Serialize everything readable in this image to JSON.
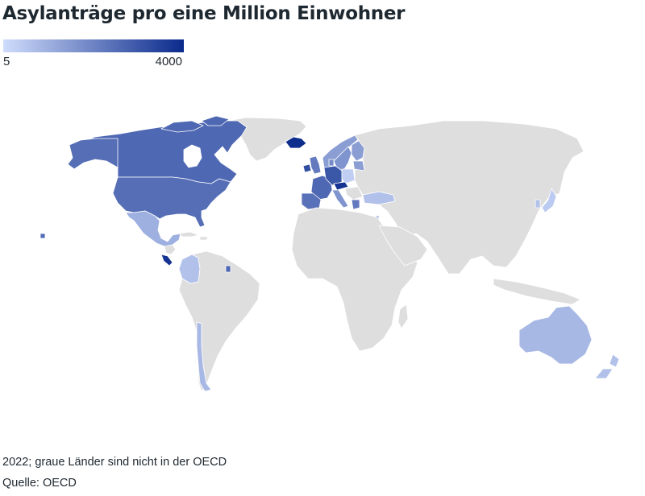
{
  "title": "Asylanträge pro eine Million Einwohner",
  "legend": {
    "min_label": "5",
    "max_label": "4000",
    "color_low": "#cfdcfb",
    "color_high": "#0a2a8c"
  },
  "note": "2022; graue Länder sind nicht in der OECD",
  "source": "Quelle: OECD",
  "colors": {
    "non_oecd": "#dedede",
    "border": "#ffffff"
  },
  "map_data": [
    {
      "country": "Canada",
      "level": 0.65
    },
    {
      "country": "United States",
      "level": 0.62
    },
    {
      "country": "Mexico",
      "level": 0.25
    },
    {
      "country": "Costa Rica",
      "level": 0.95
    },
    {
      "country": "Colombia",
      "level": 0.15
    },
    {
      "country": "Chile",
      "level": 0.2
    },
    {
      "country": "Iceland",
      "level": 0.98
    },
    {
      "country": "Ireland",
      "level": 0.8
    },
    {
      "country": "United Kingdom",
      "level": 0.55
    },
    {
      "country": "France",
      "level": 0.65
    },
    {
      "country": "Spain",
      "level": 0.6
    },
    {
      "country": "Portugal",
      "level": 0.45
    },
    {
      "country": "Belgium",
      "level": 0.75
    },
    {
      "country": "Netherlands",
      "level": 0.65
    },
    {
      "country": "Germany",
      "level": 0.75
    },
    {
      "country": "Switzerland",
      "level": 0.8
    },
    {
      "country": "Austria",
      "level": 0.95
    },
    {
      "country": "Italy",
      "level": 0.4
    },
    {
      "country": "Slovenia",
      "level": 0.7
    },
    {
      "country": "Poland",
      "level": 0.08
    },
    {
      "country": "Czechia",
      "level": 0.1
    },
    {
      "country": "Slovakia",
      "level": 0.08
    },
    {
      "country": "Hungary",
      "level": 0.05
    },
    {
      "country": "Denmark",
      "level": 0.45
    },
    {
      "country": "Norway",
      "level": 0.35
    },
    {
      "country": "Sweden",
      "level": 0.4
    },
    {
      "country": "Finland",
      "level": 0.35
    },
    {
      "country": "Estonia",
      "level": 0.35
    },
    {
      "country": "Latvia",
      "level": 0.3
    },
    {
      "country": "Lithuania",
      "level": 0.3
    },
    {
      "country": "Greece",
      "level": 0.55
    },
    {
      "country": "Turkey",
      "level": 0.15
    },
    {
      "country": "Israel",
      "level": 0.3
    },
    {
      "country": "Japan",
      "level": 0.1
    },
    {
      "country": "South Korea",
      "level": 0.15
    },
    {
      "country": "Australia",
      "level": 0.2
    },
    {
      "country": "New Zealand",
      "level": 0.15
    }
  ]
}
